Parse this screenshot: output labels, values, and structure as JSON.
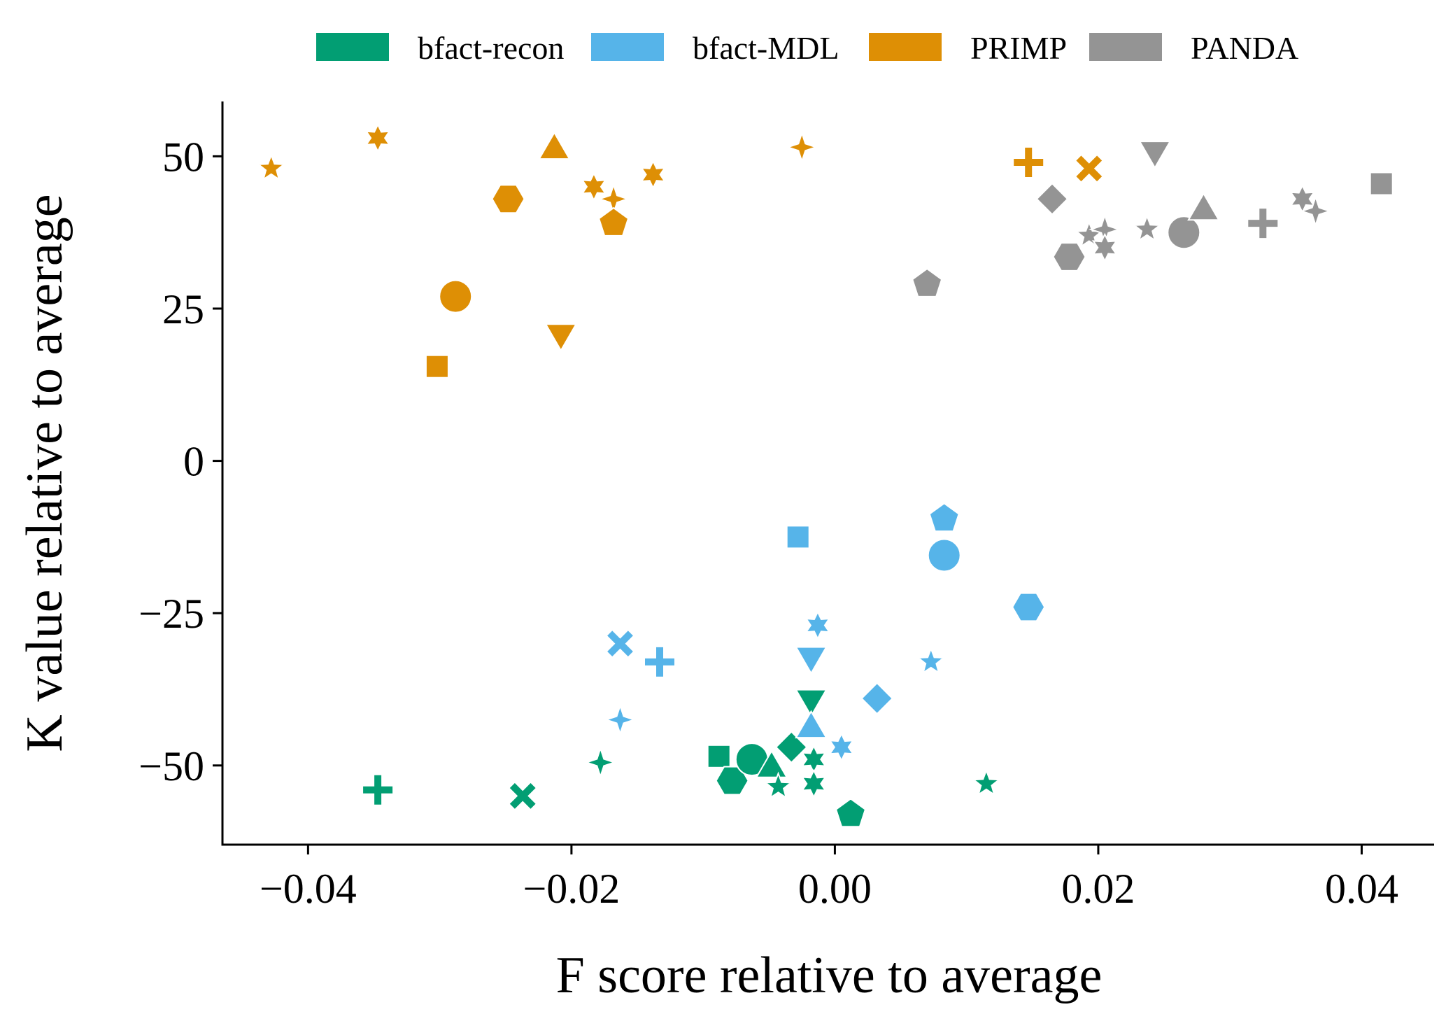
{
  "chart_data": {
    "type": "scatter",
    "xlabel": "F score relative to average",
    "ylabel": "K value relative to average",
    "xlim": [
      -0.0465,
      0.0455
    ],
    "ylim": [
      -63,
      59
    ],
    "x_ticks": [
      {
        "value": -0.04,
        "label": "−0.04"
      },
      {
        "value": -0.02,
        "label": "−0.02"
      },
      {
        "value": 0.0,
        "label": "0.00"
      },
      {
        "value": 0.02,
        "label": "0.02"
      },
      {
        "value": 0.04,
        "label": "0.04"
      }
    ],
    "y_ticks": [
      {
        "value": 50,
        "label": "50"
      },
      {
        "value": 25,
        "label": "25"
      },
      {
        "value": 0,
        "label": "0"
      },
      {
        "value": -25,
        "label": "−25"
      },
      {
        "value": -50,
        "label": "−50"
      }
    ],
    "grid": false,
    "legend_position": "top",
    "series": [
      {
        "name": "bfact-recon",
        "color": "#029e73",
        "points": [
          {
            "x": -0.0347,
            "y": -54,
            "marker": "plus"
          },
          {
            "x": -0.0237,
            "y": -55,
            "marker": "x"
          },
          {
            "x": -0.0178,
            "y": -49.5,
            "marker": "star4"
          },
          {
            "x": -0.0088,
            "y": -48.5,
            "marker": "square"
          },
          {
            "x": -0.0078,
            "y": -52.5,
            "marker": "hexagon"
          },
          {
            "x": -0.0063,
            "y": -49,
            "marker": "circle"
          },
          {
            "x": -0.0048,
            "y": -50.5,
            "marker": "triangle-up"
          },
          {
            "x": -0.0043,
            "y": -53.5,
            "marker": "star5"
          },
          {
            "x": -0.0033,
            "y": -47,
            "marker": "diamond"
          },
          {
            "x": -0.0018,
            "y": -39,
            "marker": "triangle-down"
          },
          {
            "x": -0.0016,
            "y": -49,
            "marker": "star6"
          },
          {
            "x": -0.0016,
            "y": -53,
            "marker": "star6"
          },
          {
            "x": 0.0012,
            "y": -58,
            "marker": "pentagon"
          },
          {
            "x": 0.0115,
            "y": -53,
            "marker": "star5"
          }
        ]
      },
      {
        "name": "bfact-MDL",
        "color": "#56b4e9",
        "points": [
          {
            "x": -0.0163,
            "y": -30,
            "marker": "x"
          },
          {
            "x": -0.0163,
            "y": -42.5,
            "marker": "star4"
          },
          {
            "x": -0.0133,
            "y": -33,
            "marker": "plus"
          },
          {
            "x": -0.0028,
            "y": -12.5,
            "marker": "square"
          },
          {
            "x": -0.0018,
            "y": -32,
            "marker": "triangle-down"
          },
          {
            "x": -0.0018,
            "y": -44,
            "marker": "triangle-up"
          },
          {
            "x": -0.0013,
            "y": -27,
            "marker": "star6"
          },
          {
            "x": 0.0005,
            "y": -47,
            "marker": "star6"
          },
          {
            "x": 0.0032,
            "y": -39,
            "marker": "diamond"
          },
          {
            "x": 0.0073,
            "y": -33,
            "marker": "star5"
          },
          {
            "x": 0.0083,
            "y": -9.5,
            "marker": "pentagon"
          },
          {
            "x": 0.0083,
            "y": -15.5,
            "marker": "circle"
          },
          {
            "x": 0.0147,
            "y": -24,
            "marker": "hexagon"
          }
        ]
      },
      {
        "name": "PRIMP",
        "color": "#de8f05",
        "points": [
          {
            "x": -0.0428,
            "y": 48,
            "marker": "star5"
          },
          {
            "x": -0.0347,
            "y": 53,
            "marker": "star6"
          },
          {
            "x": -0.0302,
            "y": 15.5,
            "marker": "square"
          },
          {
            "x": -0.0288,
            "y": 27,
            "marker": "circle"
          },
          {
            "x": -0.0248,
            "y": 43,
            "marker": "hexagon"
          },
          {
            "x": -0.0213,
            "y": 51,
            "marker": "triangle-up"
          },
          {
            "x": -0.0208,
            "y": 21,
            "marker": "triangle-down"
          },
          {
            "x": -0.0183,
            "y": 45,
            "marker": "star6"
          },
          {
            "x": -0.0168,
            "y": 43,
            "marker": "star4"
          },
          {
            "x": -0.0168,
            "y": 39,
            "marker": "pentagon"
          },
          {
            "x": -0.0138,
            "y": 47,
            "marker": "star6"
          },
          {
            "x": -0.0025,
            "y": 51.5,
            "marker": "star4"
          },
          {
            "x": 0.0147,
            "y": 49,
            "marker": "plus"
          },
          {
            "x": 0.0193,
            "y": 48,
            "marker": "x"
          }
        ]
      },
      {
        "name": "PANDA",
        "color": "#949494",
        "points": [
          {
            "x": 0.007,
            "y": 29,
            "marker": "pentagon"
          },
          {
            "x": 0.0165,
            "y": 43,
            "marker": "diamond"
          },
          {
            "x": 0.0178,
            "y": 33.5,
            "marker": "hexagon"
          },
          {
            "x": 0.0193,
            "y": 37,
            "marker": "star5"
          },
          {
            "x": 0.0205,
            "y": 38,
            "marker": "star4"
          },
          {
            "x": 0.0205,
            "y": 35,
            "marker": "star6"
          },
          {
            "x": 0.0237,
            "y": 38,
            "marker": "star5"
          },
          {
            "x": 0.0243,
            "y": 51,
            "marker": "triangle-down"
          },
          {
            "x": 0.0265,
            "y": 37.5,
            "marker": "circle"
          },
          {
            "x": 0.028,
            "y": 41,
            "marker": "triangle-up"
          },
          {
            "x": 0.0325,
            "y": 39,
            "marker": "plus"
          },
          {
            "x": 0.0355,
            "y": 43,
            "marker": "star6"
          },
          {
            "x": 0.0365,
            "y": 41,
            "marker": "star4"
          },
          {
            "x": 0.0415,
            "y": 45.5,
            "marker": "square"
          }
        ]
      }
    ]
  }
}
